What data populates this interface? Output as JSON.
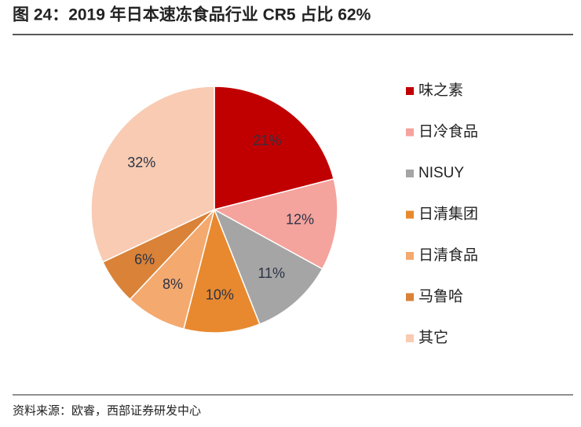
{
  "chart_data": {
    "type": "pie",
    "title": "图 24：2019 年日本速冻食品行业 CR5 占比 62%",
    "source": "资料来源：欧睿，西部证券研发中心",
    "categories": [
      "味之素",
      "日冷食品",
      "NISUY",
      "日清集团",
      "日清食品",
      "马鲁哈",
      "其它"
    ],
    "values": [
      21,
      12,
      11,
      10,
      8,
      6,
      32
    ],
    "value_labels": [
      "21%",
      "12%",
      "11%",
      "10%",
      "8%",
      "6%",
      "32%"
    ],
    "colors": [
      "#c00000",
      "#f5a39d",
      "#a5a5a5",
      "#e8892f",
      "#f4a96f",
      "#d98238",
      "#f8cbb2"
    ],
    "legend": "right"
  }
}
